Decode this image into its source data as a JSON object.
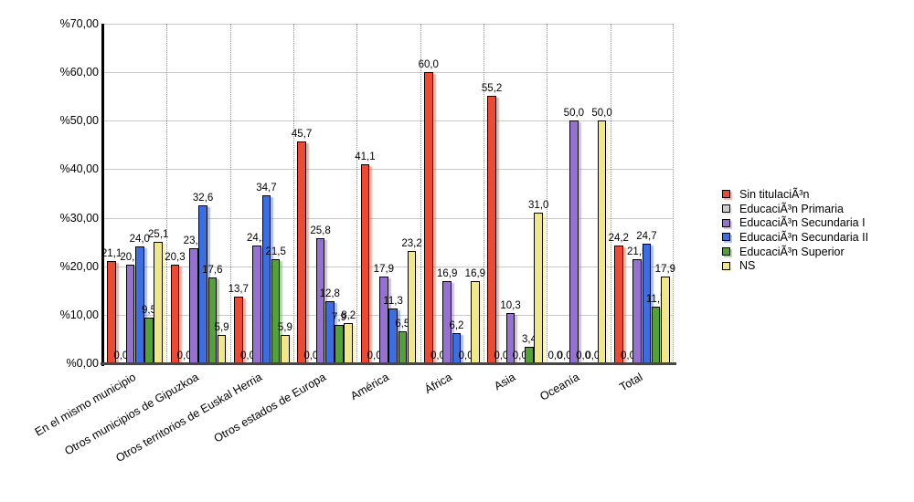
{
  "chart_data": {
    "type": "bar",
    "title": "",
    "xlabel": "",
    "ylabel": "",
    "categories": [
      "En el mismo municipio",
      "Otros municipios de Gipuzkoa",
      "Otros territorios de Euskal Herria",
      "Otros estados de Europa",
      "América",
      "África",
      "Asia",
      "Oceanía",
      "Total"
    ],
    "series": [
      {
        "name": "Sin titulaciÃ³n",
        "color": "#ea4b35",
        "values": [
          21.1,
          20.3,
          13.7,
          45.7,
          41.1,
          60.0,
          55.2,
          0.0,
          24.2
        ]
      },
      {
        "name": "EducaciÃ³n Primaria",
        "color": "#cccccc",
        "values": [
          0.0,
          0.0,
          0.0,
          0.0,
          0.0,
          0.0,
          0.0,
          0.0,
          0.0
        ]
      },
      {
        "name": "EducaciÃ³n Secundaria I",
        "color": "#9672cf",
        "values": [
          20.3,
          23.7,
          24.2,
          25.8,
          17.9,
          16.9,
          10.3,
          50.0,
          21.5
        ]
      },
      {
        "name": "EducaciÃ³n Secundaria II",
        "color": "#3e6edb",
        "values": [
          24.0,
          32.6,
          34.7,
          12.8,
          11.3,
          6.2,
          0.0,
          0.0,
          24.7
        ]
      },
      {
        "name": "EducaciÃ³n Superior",
        "color": "#55a03b",
        "values": [
          9.5,
          17.6,
          21.5,
          7.9,
          6.5,
          0.0,
          3.4,
          0.0,
          11.7
        ]
      },
      {
        "name": "NS",
        "color": "#f0e68c",
        "values": [
          25.1,
          5.9,
          5.9,
          8.2,
          23.2,
          16.9,
          31.0,
          50.0,
          17.9
        ]
      }
    ],
    "ylim": [
      0,
      70
    ],
    "ytick_step": 10,
    "ytick_labels": [
      "%0,00",
      "%10,00",
      "%20,00",
      "%30,00",
      "%40,00",
      "%50,00",
      "%60,00",
      "%70,00"
    ],
    "value_label_format": "decimal-comma-1",
    "grid": {
      "horizontal": true,
      "vertical_separators": "dotted"
    },
    "legend_position": "right",
    "bar_value_labels_shown": true
  }
}
